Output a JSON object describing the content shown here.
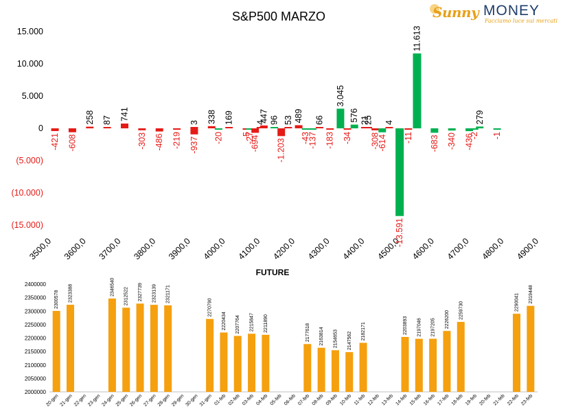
{
  "logo": {
    "brand_left": "Sunny",
    "brand_right": "MONEY",
    "tagline": "Facciamo luce sui mercati"
  },
  "chart_data": [
    {
      "type": "bar",
      "title": "S&P500 MARZO",
      "xlabel": "",
      "ylabel": "",
      "x_ticks": [
        "3500,0",
        "3600,0",
        "3700,0",
        "3800,0",
        "3900,0",
        "4000,0",
        "4100,0",
        "4200,0",
        "4300,0",
        "4400,0",
        "4500,0",
        "4600,0",
        "4700,0",
        "4800,0",
        "4900,0"
      ],
      "x_range": [
        3500,
        4900
      ],
      "ylim": [
        -15000,
        15000
      ],
      "y_ticks": [
        {
          "value": 15000,
          "label": "15.000"
        },
        {
          "value": 10000,
          "label": "10.000"
        },
        {
          "value": 5000,
          "label": "5.000"
        },
        {
          "value": 0,
          "label": "0"
        },
        {
          "value": -5000,
          "label": "(5.000)"
        },
        {
          "value": -10000,
          "label": "(10.000)"
        },
        {
          "value": -15000,
          "label": "(15.000)"
        }
      ],
      "colors": {
        "positive": "#00b050",
        "negative": "#e41b17",
        "positive_label": "#000000",
        "negative_label": "#e41b17"
      },
      "series": [
        {
          "values": [
            {
              "x": 3510,
              "value": -421,
              "label": "-421",
              "color": "red"
            },
            {
              "x": 3560,
              "value": -608,
              "label": "-608",
              "color": "red"
            },
            {
              "x": 3610,
              "value": 258,
              "label": "258",
              "color": "red"
            },
            {
              "x": 3660,
              "value": 87,
              "label": "87",
              "color": "red"
            },
            {
              "x": 3710,
              "value": 741,
              "label": "741",
              "color": "red"
            },
            {
              "x": 3760,
              "value": -303,
              "label": "-303",
              "color": "red"
            },
            {
              "x": 3810,
              "value": -486,
              "label": "-486",
              "color": "red"
            },
            {
              "x": 3860,
              "value": -219,
              "label": "-219",
              "color": "red"
            },
            {
              "x": 3910,
              "value": -937,
              "label": "-937",
              "color": "red"
            },
            {
              "x": 3910,
              "value": 3,
              "label": "3",
              "color": "red"
            },
            {
              "x": 3960,
              "value": 338,
              "label": "338",
              "color": "red"
            },
            {
              "x": 3980,
              "value": -20,
              "label": "-20",
              "color": "green"
            },
            {
              "x": 4010,
              "value": 169,
              "label": "169",
              "color": "red"
            },
            {
              "x": 4060,
              "value": -5,
              "label": "-5",
              "color": "red"
            },
            {
              "x": 4070,
              "value": -27,
              "label": "-27",
              "color": "green"
            },
            {
              "x": 4085,
              "value": -694,
              "label": "-694",
              "color": "red"
            },
            {
              "x": 4100,
              "value": 4,
              "label": "4",
              "color": "red"
            },
            {
              "x": 4110,
              "value": 447,
              "label": "447",
              "color": "red"
            },
            {
              "x": 4140,
              "value": 96,
              "label": "96",
              "color": "green"
            },
            {
              "x": 4160,
              "value": -1203,
              "label": "-1.203",
              "color": "red"
            },
            {
              "x": 4180,
              "value": 53,
              "label": "53",
              "color": "red"
            },
            {
              "x": 4210,
              "value": 489,
              "label": "489",
              "color": "red"
            },
            {
              "x": 4230,
              "value": -43,
              "label": "-43",
              "color": "green"
            },
            {
              "x": 4250,
              "value": -137,
              "label": "-137",
              "color": "green"
            },
            {
              "x": 4270,
              "value": 66,
              "label": "66",
              "color": "red"
            },
            {
              "x": 4300,
              "value": -183,
              "label": "-183",
              "color": "red"
            },
            {
              "x": 4330,
              "value": 3045,
              "label": "3.045",
              "color": "green"
            },
            {
              "x": 4350,
              "value": -34,
              "label": "-34",
              "color": "red"
            },
            {
              "x": 4370,
              "value": 576,
              "label": "576",
              "color": "green"
            },
            {
              "x": 4400,
              "value": 21,
              "label": "21",
              "color": "red"
            },
            {
              "x": 4410,
              "value": 25,
              "label": "25",
              "color": "red"
            },
            {
              "x": 4430,
              "value": -308,
              "label": "-308",
              "color": "red"
            },
            {
              "x": 4450,
              "value": -614,
              "label": "-614",
              "color": "green"
            },
            {
              "x": 4470,
              "value": 4,
              "label": "4",
              "color": "red"
            },
            {
              "x": 4500,
              "value": -13591,
              "label": "-13.591",
              "color": "green"
            },
            {
              "x": 4525,
              "value": -11,
              "label": "-11",
              "color": "red"
            },
            {
              "x": 4550,
              "value": 11613,
              "label": "11.613",
              "color": "green"
            },
            {
              "x": 4600,
              "value": -683,
              "label": "-683",
              "color": "green"
            },
            {
              "x": 4650,
              "value": -340,
              "label": "-340",
              "color": "green"
            },
            {
              "x": 4700,
              "value": -436,
              "label": "-436",
              "color": "green"
            },
            {
              "x": 4715,
              "value": -2,
              "label": "-2",
              "color": "green"
            },
            {
              "x": 4730,
              "value": 279,
              "label": "279",
              "color": "green"
            },
            {
              "x": 4780,
              "value": -1,
              "label": "-1",
              "color": "green"
            }
          ]
        }
      ]
    },
    {
      "type": "bar",
      "title": "FUTURE",
      "xlabel": "",
      "ylabel": "",
      "ylim": [
        2000000,
        2400000
      ],
      "y_ticks": [
        "2000000",
        "2050000",
        "2100000",
        "2150000",
        "2200000",
        "2250000",
        "2300000",
        "2350000",
        "2400000"
      ],
      "grid": false,
      "color": "#f5a00f",
      "categories": [
        "20-gen",
        "21-gen",
        "22-gen",
        "23-gen",
        "24-gen",
        "25-gen",
        "26-gen",
        "27-gen",
        "28-gen",
        "29-gen",
        "30-gen",
        "31-gen",
        "01-feb",
        "02-feb",
        "03-feb",
        "04-feb",
        "05-feb",
        "06-feb",
        "07-feb",
        "08-feb",
        "09-feb",
        "10-feb",
        "11-feb",
        "12-feb",
        "13-feb",
        "14-feb",
        "15-feb",
        "16-feb",
        "17-feb",
        "18-feb",
        "19-feb",
        "20-feb",
        "21-feb",
        "22-feb",
        "23-feb"
      ],
      "values": [
        2300578,
        2323388,
        null,
        null,
        2346540,
        2312522,
        2327739,
        2323139,
        2321171,
        null,
        null,
        2270790,
        2220434,
        2207764,
        2215847,
        2211890,
        null,
        null,
        2177618,
        2163814,
        2154653,
        2147562,
        2182171,
        null,
        null,
        2203893,
        2197046,
        2197205,
        2226200,
        2259730,
        null,
        null,
        null,
        2290041,
        2319448
      ]
    }
  ]
}
